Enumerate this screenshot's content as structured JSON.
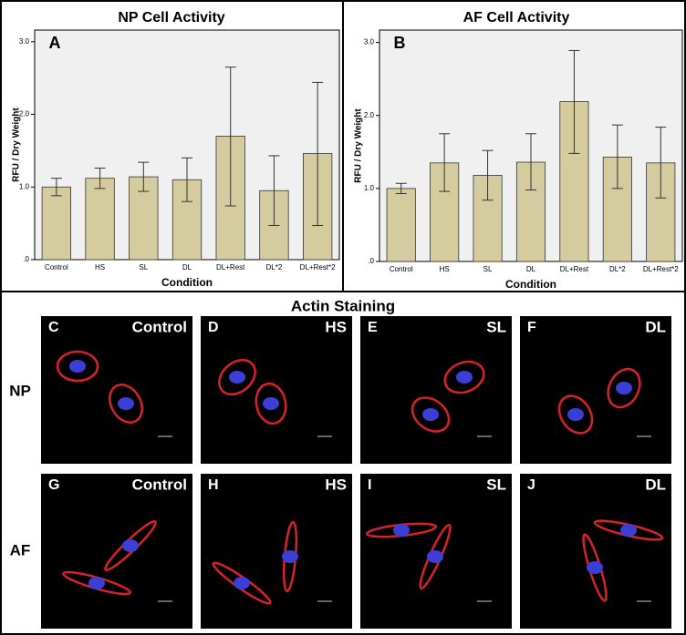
{
  "chart_data": [
    {
      "type": "bar",
      "title": "NP Cell Activity",
      "panel": "A",
      "xlabel": "Condition",
      "ylabel": "RFU / Dry Weight",
      "categories": [
        "Control",
        "HS",
        "SL",
        "DL",
        "DL+Rest",
        "DL*2",
        "DL+Rest*2"
      ],
      "values": [
        1.0,
        1.12,
        1.14,
        1.1,
        1.7,
        0.95,
        1.46
      ],
      "lower": [
        0.88,
        0.98,
        0.94,
        0.8,
        0.74,
        0.47,
        0.47
      ],
      "upper": [
        1.12,
        1.26,
        1.34,
        1.4,
        2.65,
        1.43,
        2.44
      ],
      "color": "#d4cb9e",
      "ylim": [
        0,
        3.16
      ],
      "yticks": [
        {
          "value": 0,
          "label": ".0"
        },
        {
          "value": 1,
          "label": "1.0"
        },
        {
          "value": 2,
          "label": "2.0"
        },
        {
          "value": 3,
          "label": "3.0"
        }
      ]
    },
    {
      "type": "bar",
      "title": "AF Cell Activity",
      "panel": "B",
      "xlabel": "Condition",
      "ylabel": "RFU / Dry Weight",
      "categories": [
        "Control",
        "HS",
        "SL",
        "DL",
        "DL+Rest",
        "DL*2",
        "DL+Rest*2"
      ],
      "values": [
        1.0,
        1.35,
        1.18,
        1.36,
        2.19,
        1.43,
        1.35
      ],
      "lower": [
        0.93,
        0.96,
        0.84,
        0.98,
        1.48,
        1.0,
        0.87
      ],
      "upper": [
        1.07,
        1.75,
        1.52,
        1.75,
        2.89,
        1.87,
        1.84
      ],
      "color": "#d4cb9e",
      "ylim": [
        0,
        3.17
      ],
      "yticks": [
        {
          "value": 0,
          "label": ".0"
        },
        {
          "value": 1,
          "label": "1.0"
        },
        {
          "value": 2,
          "label": "2.0"
        },
        {
          "value": 3,
          "label": "3.0"
        }
      ]
    }
  ],
  "staining": {
    "title": "Actin Staining",
    "rows": [
      "NP",
      "AF"
    ],
    "panels": [
      {
        "letter": "C",
        "label": "Control"
      },
      {
        "letter": "D",
        "label": "HS"
      },
      {
        "letter": "E",
        "label": "SL"
      },
      {
        "letter": "F",
        "label": "DL"
      },
      {
        "letter": "G",
        "label": "Control"
      },
      {
        "letter": "H",
        "label": "HS"
      },
      {
        "letter": "I",
        "label": "SL"
      },
      {
        "letter": "J",
        "label": "DL"
      }
    ]
  }
}
